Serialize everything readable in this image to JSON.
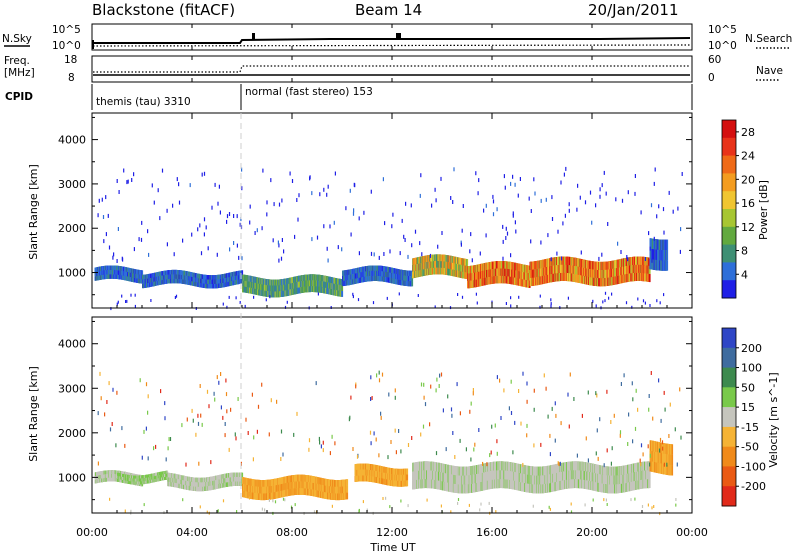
{
  "header": {
    "radar": "Blackstone (fitACF)",
    "beam": "Beam 14",
    "date": "20/Jan/2011"
  },
  "panels": {
    "nsky": {
      "label": "N.Sky",
      "ticks": [
        "10^5",
        "10^0"
      ],
      "right_label": "N.Search",
      "right_ticks": [
        "10^5",
        "10^0"
      ]
    },
    "freq": {
      "label_line1": "Freq.",
      "label_line2": "[MHz]",
      "ticks": [
        "18",
        "8"
      ],
      "right_label": "Nave",
      "right_ticks": [
        "60",
        "0"
      ]
    },
    "cpid": {
      "label": "CPID",
      "modes": [
        "themis (tau) 3310",
        "normal (fast stereo) 153"
      ]
    }
  },
  "chart_data": [
    {
      "type": "heatmap",
      "title": "Power",
      "ylabel": "Slant Range [km]",
      "xlabel": "Time UT",
      "xlim": [
        0,
        24
      ],
      "ylim": [
        200,
        4600
      ],
      "yticks": [
        1000,
        2000,
        3000,
        4000
      ],
      "xticks": [
        "00:00",
        "04:00",
        "08:00",
        "12:00",
        "16:00",
        "20:00",
        "00:00"
      ],
      "colorbar": {
        "label": "Power [dB]",
        "ticks": [
          "4",
          "8",
          "12",
          "16",
          "20",
          "24",
          "28"
        ],
        "colors": [
          "#1f1fe6",
          "#2e6fd9",
          "#3e8f74",
          "#62a93f",
          "#a7c632",
          "#f0c531",
          "#f39c1f",
          "#ef6a17",
          "#e8331a",
          "#d40f0f"
        ]
      },
      "features": [
        {
          "time_start": 0.1,
          "time_end": 2.0,
          "range_low": 800,
          "range_high": 1100,
          "level": "low"
        },
        {
          "time_start": 2.0,
          "time_end": 6.0,
          "range_low": 700,
          "range_high": 1000,
          "level": "low"
        },
        {
          "time_start": 6.0,
          "time_end": 10.0,
          "range_low": 500,
          "range_high": 900,
          "level": "low-mid"
        },
        {
          "time_start": 10.0,
          "time_end": 12.8,
          "range_low": 750,
          "range_high": 1100,
          "level": "low"
        },
        {
          "time_start": 12.8,
          "time_end": 15.0,
          "range_low": 900,
          "range_high": 1350,
          "level": "mid-high"
        },
        {
          "time_start": 15.0,
          "time_end": 17.5,
          "range_low": 700,
          "range_high": 1200,
          "level": "high"
        },
        {
          "time_start": 17.5,
          "time_end": 22.3,
          "range_low": 750,
          "range_high": 1300,
          "level": "high"
        },
        {
          "time_start": 22.3,
          "time_end": 23.0,
          "range_low": 1100,
          "range_high": 1800,
          "level": "low"
        }
      ]
    },
    {
      "type": "heatmap",
      "title": "Velocity",
      "ylabel": "Slant Range [km]",
      "xlabel": "Time UT",
      "xlim": [
        0,
        24
      ],
      "ylim": [
        200,
        4600
      ],
      "yticks": [
        1000,
        2000,
        3000,
        4000
      ],
      "xticks": [
        "00:00",
        "04:00",
        "08:00",
        "12:00",
        "16:00",
        "20:00",
        "00:00"
      ],
      "colorbar": {
        "label": "Velocity [m s^-1]",
        "ticks": [
          "200",
          "100",
          "50",
          "15",
          "-15",
          "-50",
          "-100",
          "-200"
        ],
        "colors": [
          "#2f46c6",
          "#3f6c9f",
          "#3d8a4e",
          "#79c94a",
          "#c5c5bd",
          "#f5b335",
          "#f08a1a",
          "#ea5a14",
          "#e12a1a"
        ]
      },
      "features": [
        {
          "time_start": 0.1,
          "time_end": 2.0,
          "range_low": 850,
          "range_high": 1100,
          "velocity": "ground-scatter"
        },
        {
          "time_start": 1.0,
          "time_end": 3.0,
          "range_low": 900,
          "range_high": 1100,
          "velocity": "15 to 50"
        },
        {
          "time_start": 3.0,
          "time_end": 6.0,
          "range_low": 750,
          "range_high": 1050,
          "velocity": "ground-scatter"
        },
        {
          "time_start": 6.0,
          "time_end": 10.2,
          "range_low": 550,
          "range_high": 1000,
          "velocity": "-15 to -50"
        },
        {
          "time_start": 10.5,
          "time_end": 12.6,
          "range_low": 850,
          "range_high": 1250,
          "velocity": "-15 to -50"
        },
        {
          "time_start": 12.8,
          "time_end": 22.3,
          "range_low": 700,
          "range_high": 1300,
          "velocity": "ground-scatter"
        },
        {
          "time_start": 22.3,
          "time_end": 23.2,
          "range_low": 1100,
          "range_high": 1800,
          "velocity": "-15 to -50"
        }
      ]
    }
  ],
  "footer": {
    "time_label": "Time UT"
  }
}
